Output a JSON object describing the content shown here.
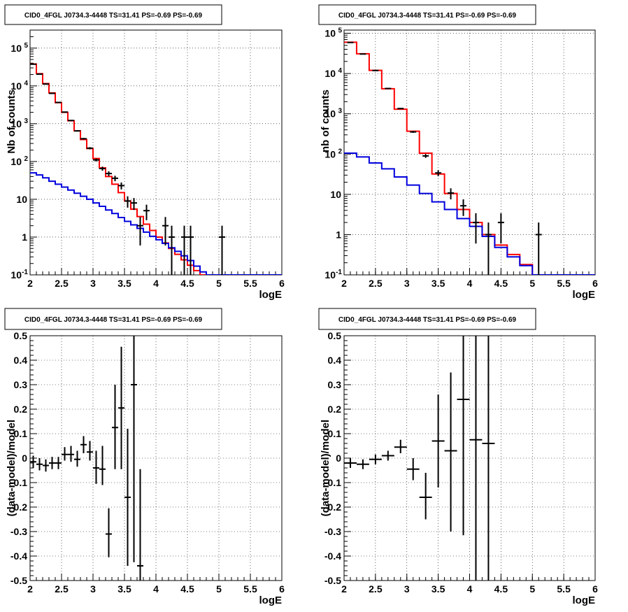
{
  "chart_data": [
    {
      "type": "line",
      "title": "CID0_4FGL J0734.3-4448 TS=31.41 PS=-0.69 PS=-0.69",
      "xlabel": "logE",
      "ylabel": "Nb of counts",
      "xlim": [
        2,
        6
      ],
      "ylim": [
        0.1,
        300000
      ],
      "log_y": true,
      "grid": true,
      "x_ticks": [
        "2",
        "2.5",
        "3",
        "3.5",
        "4",
        "4.5",
        "5",
        "5.5",
        "6"
      ],
      "y_ticks": [
        {
          "label": "10",
          "sup": "-1",
          "v": 0.1
        },
        {
          "label": "1",
          "sup": "",
          "v": 1
        },
        {
          "label": "10",
          "sup": "",
          "v": 10
        },
        {
          "label": "10",
          "sup": "2",
          "v": 100
        },
        {
          "label": "10",
          "sup": "3",
          "v": 1000
        },
        {
          "label": "10",
          "sup": "4",
          "v": 10000
        },
        {
          "label": "10",
          "sup": "5",
          "v": 100000
        }
      ],
      "bin_edges": [
        2.0,
        2.1,
        2.2,
        2.3,
        2.4,
        2.5,
        2.6,
        2.7,
        2.8,
        2.9,
        3.0,
        3.1,
        3.2,
        3.3,
        3.4,
        3.5,
        3.6,
        3.7,
        3.8,
        3.9,
        4.0,
        4.1,
        4.2,
        4.3,
        4.4,
        4.5,
        4.6,
        4.7,
        4.8,
        4.9,
        5.0,
        5.1,
        5.2,
        5.3,
        5.4,
        5.5,
        5.6,
        5.7,
        5.8,
        5.9,
        6.0
      ],
      "series": [
        {
          "name": "",
          "style": "hist",
          "color": "#ff0000",
          "values": [
            38000,
            21000,
            11500,
            6500,
            3600,
            2000,
            1200,
            650,
            380,
            220,
            120,
            68,
            40,
            25,
            15,
            9,
            5.5,
            3.5,
            2.2,
            1.5,
            1.0,
            0.7,
            0.5,
            0.35,
            0.25,
            0.18,
            0.13,
            0.1,
            0.1,
            0.1,
            0.1,
            0.1,
            0.1,
            0.1,
            0.1,
            0.1,
            0.1,
            0.1,
            0.1,
            0.1
          ]
        },
        {
          "name": "",
          "style": "hist",
          "color": "#0000dd",
          "values": [
            50,
            44,
            37,
            30,
            25,
            21,
            17.5,
            14.5,
            12,
            10,
            8,
            6.5,
            5.2,
            4.2,
            3.3,
            2.6,
            2.1,
            1.7,
            1.35,
            1.05,
            0.85,
            0.68,
            0.52,
            0.42,
            0.32,
            0.24,
            0.17,
            0.12,
            0.1,
            0.1,
            0.1,
            0.1,
            0.1,
            0.1,
            0.1,
            0.1,
            0.1,
            0.1,
            0.1,
            0.1
          ]
        },
        {
          "name": "",
          "style": "points",
          "color": "#000000",
          "points": [
            {
              "x": 2.05,
              "y": 37500,
              "lo": 37300,
              "hi": 37700
            },
            {
              "x": 2.15,
              "y": 20500,
              "lo": 20350,
              "hi": 20650
            },
            {
              "x": 2.25,
              "y": 11200,
              "lo": 11090,
              "hi": 11310
            },
            {
              "x": 2.35,
              "y": 6350,
              "lo": 6270,
              "hi": 6430
            },
            {
              "x": 2.45,
              "y": 3650,
              "lo": 3590,
              "hi": 3710
            },
            {
              "x": 2.55,
              "y": 2030,
              "lo": 1985,
              "hi": 2075
            },
            {
              "x": 2.65,
              "y": 1215,
              "lo": 1180,
              "hi": 1250
            },
            {
              "x": 2.75,
              "y": 645,
              "lo": 620,
              "hi": 670
            },
            {
              "x": 2.85,
              "y": 400,
              "lo": 380,
              "hi": 420
            },
            {
              "x": 2.95,
              "y": 225,
              "lo": 210,
              "hi": 240
            },
            {
              "x": 3.05,
              "y": 110,
              "lo": 100,
              "hi": 120
            },
            {
              "x": 3.15,
              "y": 65,
              "lo": 57,
              "hi": 73
            },
            {
              "x": 3.25,
              "y": 48,
              "lo": 41,
              "hi": 55
            },
            {
              "x": 3.35,
              "y": 36,
              "lo": 30,
              "hi": 42
            },
            {
              "x": 3.45,
              "y": 23,
              "lo": 18.2,
              "hi": 27.8
            },
            {
              "x": 3.55,
              "y": 9,
              "lo": 6,
              "hi": 12
            },
            {
              "x": 3.65,
              "y": 8,
              "lo": 5.2,
              "hi": 10.8
            },
            {
              "x": 3.75,
              "y": 2,
              "lo": 0.6,
              "hi": 3.4
            },
            {
              "x": 3.85,
              "y": 5,
              "lo": 2.8,
              "hi": 7.2
            },
            {
              "x": 4.15,
              "y": 2,
              "lo": 0.6,
              "hi": 3.4
            },
            {
              "x": 4.25,
              "y": 1,
              "lo": 0.1,
              "hi": 2
            },
            {
              "x": 4.45,
              "y": 1,
              "lo": 0.1,
              "hi": 2
            },
            {
              "x": 4.55,
              "y": 1,
              "lo": 0.1,
              "hi": 2
            },
            {
              "x": 5.05,
              "y": 1,
              "lo": 0.1,
              "hi": 2
            }
          ]
        }
      ]
    },
    {
      "type": "line",
      "title": "CID0_4FGL J0734.3-4448 TS=31.41 PS=-0.69 PS=-0.69",
      "xlabel": "logE",
      "ylabel": "nb of counts",
      "xlim": [
        2,
        6
      ],
      "ylim": [
        0.1,
        120000
      ],
      "log_y": true,
      "grid": true,
      "x_ticks": [
        "2",
        "2.5",
        "3",
        "3.5",
        "4",
        "4.5",
        "5",
        "5.5",
        "6"
      ],
      "y_ticks": [
        {
          "label": "10",
          "sup": "-1",
          "v": 0.1
        },
        {
          "label": "1",
          "sup": "",
          "v": 1
        },
        {
          "label": "10",
          "sup": "",
          "v": 10
        },
        {
          "label": "10",
          "sup": "2",
          "v": 100
        },
        {
          "label": "10",
          "sup": "3",
          "v": 1000
        },
        {
          "label": "10",
          "sup": "4",
          "v": 10000
        },
        {
          "label": "10",
          "sup": "5",
          "v": 100000
        }
      ],
      "bin_edges": [
        2.0,
        2.2,
        2.4,
        2.6,
        2.8,
        3.0,
        3.2,
        3.4,
        3.6,
        3.8,
        4.0,
        4.2,
        4.4,
        4.6,
        4.8,
        5.0,
        5.2,
        5.4,
        5.6,
        5.8,
        6.0
      ],
      "series": [
        {
          "name": "",
          "style": "hist",
          "color": "#ff0000",
          "values": [
            60000,
            31000,
            12000,
            4200,
            1300,
            370,
            105,
            32,
            10.5,
            4.2,
            2.0,
            1.0,
            0.55,
            0.32,
            0.18,
            0.1,
            0.1,
            0.1,
            0.1,
            0.1
          ]
        },
        {
          "name": "",
          "style": "hist",
          "color": "#0000dd",
          "values": [
            105,
            85,
            60,
            43,
            27,
            17,
            10.5,
            6.5,
            4.2,
            2.5,
            1.6,
            0.9,
            0.48,
            0.28,
            0.17,
            0.1,
            0.1,
            0.1,
            0.1,
            0.1
          ]
        },
        {
          "name": "",
          "style": "points",
          "color": "#000000",
          "points": [
            {
              "x": 2.1,
              "y": 59000,
              "lo": 58760,
              "hi": 59240
            },
            {
              "x": 2.3,
              "y": 30500,
              "lo": 30330,
              "hi": 30670
            },
            {
              "x": 2.5,
              "y": 11900,
              "lo": 11790,
              "hi": 12010
            },
            {
              "x": 2.7,
              "y": 4250,
              "lo": 4185,
              "hi": 4315
            },
            {
              "x": 2.9,
              "y": 1350,
              "lo": 1313,
              "hi": 1387
            },
            {
              "x": 3.1,
              "y": 355,
              "lo": 336,
              "hi": 374
            },
            {
              "x": 3.3,
              "y": 90,
              "lo": 80.5,
              "hi": 99.5
            },
            {
              "x": 3.5,
              "y": 34,
              "lo": 28.2,
              "hi": 39.8
            },
            {
              "x": 3.7,
              "y": 10.8,
              "lo": 7.5,
              "hi": 14.1
            },
            {
              "x": 3.9,
              "y": 5.2,
              "lo": 2.9,
              "hi": 7.5
            },
            {
              "x": 4.1,
              "y": 2,
              "lo": 0.6,
              "hi": 3.4
            },
            {
              "x": 4.3,
              "y": 1,
              "lo": 0.1,
              "hi": 2
            },
            {
              "x": 4.5,
              "y": 2,
              "lo": 0.6,
              "hi": 3.4
            },
            {
              "x": 5.1,
              "y": 1,
              "lo": 0.1,
              "hi": 2
            }
          ]
        }
      ]
    },
    {
      "type": "scatter",
      "title": "CID0_4FGL J0734.3-4448 TS=31.41 PS=-0.69 PS=-0.69",
      "xlabel": "logE",
      "ylabel": "(data-model)/model",
      "xlim": [
        2,
        6
      ],
      "ylim": [
        -0.5,
        0.5
      ],
      "log_y": false,
      "grid": true,
      "x_ticks": [
        "2",
        "2.5",
        "3",
        "3.5",
        "4",
        "4.5",
        "5",
        "5.5",
        "6"
      ],
      "y_ticks": [
        {
          "label": "-0.5",
          "sup": "",
          "v": -0.5
        },
        {
          "label": "-0.4",
          "sup": "",
          "v": -0.4
        },
        {
          "label": "-0.3",
          "sup": "",
          "v": -0.3
        },
        {
          "label": "-0.2",
          "sup": "",
          "v": -0.2
        },
        {
          "label": "-0.1",
          "sup": "",
          "v": -0.1
        },
        {
          "label": "0",
          "sup": "",
          "v": 0
        },
        {
          "label": "0.1",
          "sup": "",
          "v": 0.1
        },
        {
          "label": "0.2",
          "sup": "",
          "v": 0.2
        },
        {
          "label": "0.3",
          "sup": "",
          "v": 0.3
        },
        {
          "label": "0.4",
          "sup": "",
          "v": 0.4
        },
        {
          "label": "0.5",
          "sup": "",
          "v": 0.5
        }
      ],
      "series": [
        {
          "name": "",
          "style": "points",
          "color": "#000000",
          "half_width": 0.05,
          "points": [
            {
              "x": 2.05,
              "y": -0.015,
              "lo": -0.04,
              "hi": 0.01
            },
            {
              "x": 2.15,
              "y": -0.025,
              "lo": -0.05,
              "hi": 0.0
            },
            {
              "x": 2.25,
              "y": -0.03,
              "lo": -0.055,
              "hi": -0.005
            },
            {
              "x": 2.35,
              "y": -0.02,
              "lo": -0.045,
              "hi": 0.005
            },
            {
              "x": 2.45,
              "y": -0.02,
              "lo": -0.045,
              "hi": 0.005
            },
            {
              "x": 2.55,
              "y": 0.015,
              "lo": -0.01,
              "hi": 0.045
            },
            {
              "x": 2.65,
              "y": 0.015,
              "lo": -0.015,
              "hi": 0.05
            },
            {
              "x": 2.75,
              "y": -0.005,
              "lo": -0.035,
              "hi": 0.03
            },
            {
              "x": 2.85,
              "y": 0.055,
              "lo": 0.02,
              "hi": 0.09
            },
            {
              "x": 2.95,
              "y": 0.025,
              "lo": -0.01,
              "hi": 0.07
            },
            {
              "x": 3.05,
              "y": -0.04,
              "lo": -0.105,
              "hi": 0.03
            },
            {
              "x": 3.15,
              "y": -0.045,
              "lo": -0.11,
              "hi": 0.05
            },
            {
              "x": 3.25,
              "y": -0.31,
              "lo": -0.405,
              "hi": -0.205
            },
            {
              "x": 3.35,
              "y": 0.125,
              "lo": -0.045,
              "hi": 0.3
            },
            {
              "x": 3.45,
              "y": 0.205,
              "lo": -0.045,
              "hi": 0.455
            },
            {
              "x": 3.55,
              "y": -0.16,
              "lo": -0.44,
              "hi": 0.12
            },
            {
              "x": 3.65,
              "y": 0.3,
              "lo": -0.425,
              "hi": 0.5
            },
            {
              "x": 3.75,
              "y": -0.44,
              "lo": -0.5,
              "hi": -0.045
            }
          ]
        }
      ]
    },
    {
      "type": "scatter",
      "title": "CID0_4FGL J0734.3-4448 TS=31.41 PS=-0.69 PS=-0.69",
      "xlabel": "logE",
      "ylabel": "(data-model)/model",
      "xlim": [
        2,
        6
      ],
      "ylim": [
        -0.5,
        0.5
      ],
      "log_y": false,
      "grid": true,
      "x_ticks": [
        "2",
        "2.5",
        "3",
        "3.5",
        "4",
        "4.5",
        "5",
        "5.5",
        "6"
      ],
      "y_ticks": [
        {
          "label": "-0.5",
          "sup": "",
          "v": -0.5
        },
        {
          "label": "-0.4",
          "sup": "",
          "v": -0.4
        },
        {
          "label": "-0.3",
          "sup": "",
          "v": -0.3
        },
        {
          "label": "-0.2",
          "sup": "",
          "v": -0.2
        },
        {
          "label": "-0.1",
          "sup": "",
          "v": -0.1
        },
        {
          "label": "0",
          "sup": "",
          "v": 0
        },
        {
          "label": "0.1",
          "sup": "",
          "v": 0.1
        },
        {
          "label": "0.2",
          "sup": "",
          "v": 0.2
        },
        {
          "label": "0.3",
          "sup": "",
          "v": 0.3
        },
        {
          "label": "0.4",
          "sup": "",
          "v": 0.4
        },
        {
          "label": "0.5",
          "sup": "",
          "v": 0.5
        }
      ],
      "series": [
        {
          "name": "",
          "style": "points",
          "color": "#000000",
          "half_width": 0.1,
          "points": [
            {
              "x": 2.1,
              "y": -0.02,
              "lo": -0.04,
              "hi": 0.0
            },
            {
              "x": 2.3,
              "y": -0.025,
              "lo": -0.045,
              "hi": -0.005
            },
            {
              "x": 2.5,
              "y": -0.005,
              "lo": -0.025,
              "hi": 0.015
            },
            {
              "x": 2.7,
              "y": 0.01,
              "lo": -0.01,
              "hi": 0.03
            },
            {
              "x": 2.9,
              "y": 0.045,
              "lo": 0.02,
              "hi": 0.075
            },
            {
              "x": 3.1,
              "y": -0.045,
              "lo": -0.09,
              "hi": 0.0
            },
            {
              "x": 3.3,
              "y": -0.16,
              "lo": -0.25,
              "hi": -0.06
            },
            {
              "x": 3.5,
              "y": 0.07,
              "lo": -0.12,
              "hi": 0.26
            },
            {
              "x": 3.7,
              "y": 0.03,
              "lo": -0.3,
              "hi": 0.35
            },
            {
              "x": 3.9,
              "y": 0.24,
              "lo": -0.315,
              "hi": 0.5
            },
            {
              "x": 4.1,
              "y": 0.075,
              "lo": -0.5,
              "hi": 0.5
            },
            {
              "x": 4.3,
              "y": 0.06,
              "lo": -0.5,
              "hi": 0.5
            }
          ]
        }
      ]
    }
  ]
}
